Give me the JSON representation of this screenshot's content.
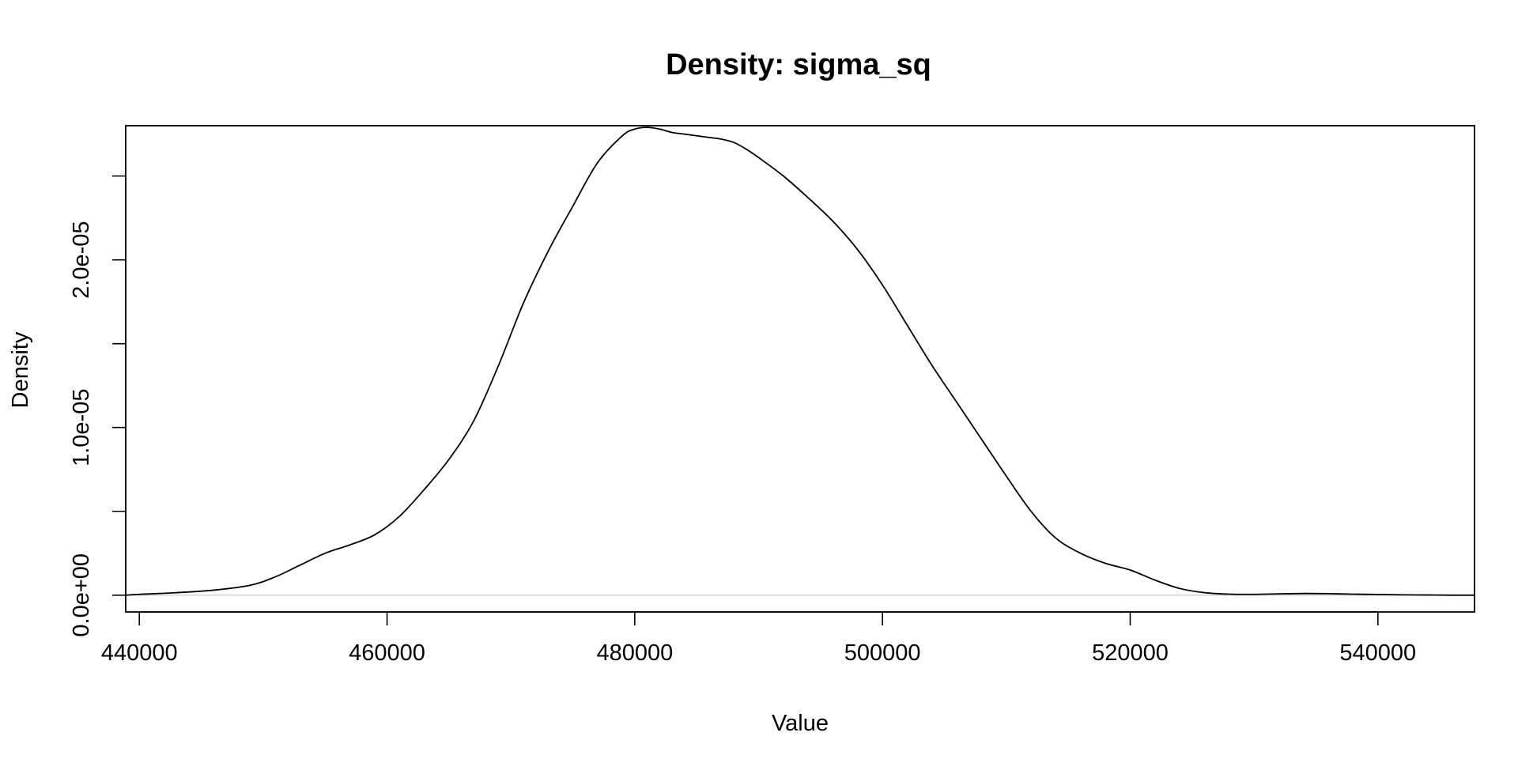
{
  "chart_data": {
    "type": "line",
    "title": "Density: sigma_sq",
    "xlabel": "Value",
    "ylabel": "Density",
    "xlim": [
      438900,
      547800
    ],
    "ylim": [
      -1e-06,
      2.8e-05
    ],
    "x_ticks": [
      440000,
      460000,
      480000,
      500000,
      520000,
      540000
    ],
    "x_tick_labels": [
      "440000",
      "460000",
      "480000",
      "500000",
      "520000",
      "540000"
    ],
    "y_ticks": [
      0,
      5e-06,
      1e-05,
      1.5e-05,
      2e-05,
      2.5e-05
    ],
    "y_tick_labels": [
      "0.0e+00",
      "",
      "1.0e-05",
      "",
      "2.0e-05",
      ""
    ],
    "grid": false,
    "legend": "none",
    "zero_line_color": "#d3d3d3",
    "line_color": "#000000",
    "series": [
      {
        "x": [
          438900,
          440000,
          443000,
          446000,
          449000,
          451000,
          453000,
          455000,
          457000,
          459000,
          461000,
          463000,
          465000,
          467000,
          469000,
          471000,
          473000,
          475000,
          477000,
          479000,
          480000,
          481000,
          482000,
          483000,
          484000,
          485000,
          486000,
          487000,
          488000,
          489000,
          490000,
          492000,
          494000,
          496000,
          498000,
          500000,
          502000,
          504000,
          506000,
          508000,
          510000,
          512000,
          514000,
          516000,
          518000,
          520000,
          522000,
          524000,
          526000,
          528000,
          530000,
          532000,
          534000,
          536000,
          538000,
          540000,
          542000,
          544000,
          546000,
          547800
        ],
        "y": [
          0,
          5e-08,
          1.5e-07,
          3e-07,
          6e-07,
          1.1e-06,
          1.8e-06,
          2.5e-06,
          3e-06,
          3.6e-06,
          4.7e-06,
          6.3e-06,
          8.1e-06,
          1.04e-05,
          1.37e-05,
          1.74e-05,
          2.05e-05,
          2.32e-05,
          2.58e-05,
          2.74e-05,
          2.78e-05,
          2.79e-05,
          2.78e-05,
          2.76e-05,
          2.75e-05,
          2.74e-05,
          2.73e-05,
          2.72e-05,
          2.7e-05,
          2.66e-05,
          2.61e-05,
          2.5e-05,
          2.37e-05,
          2.23e-05,
          2.06e-05,
          1.85e-05,
          1.61e-05,
          1.37e-05,
          1.15e-05,
          9.3e-06,
          7.1e-06,
          5e-06,
          3.4e-06,
          2.5e-06,
          1.9e-06,
          1.5e-06,
          9e-07,
          4e-07,
          1.5e-07,
          6e-08,
          5e-08,
          8e-08,
          1e-07,
          9e-08,
          6e-08,
          4e-08,
          2e-08,
          1e-08,
          0,
          0
        ]
      }
    ]
  }
}
